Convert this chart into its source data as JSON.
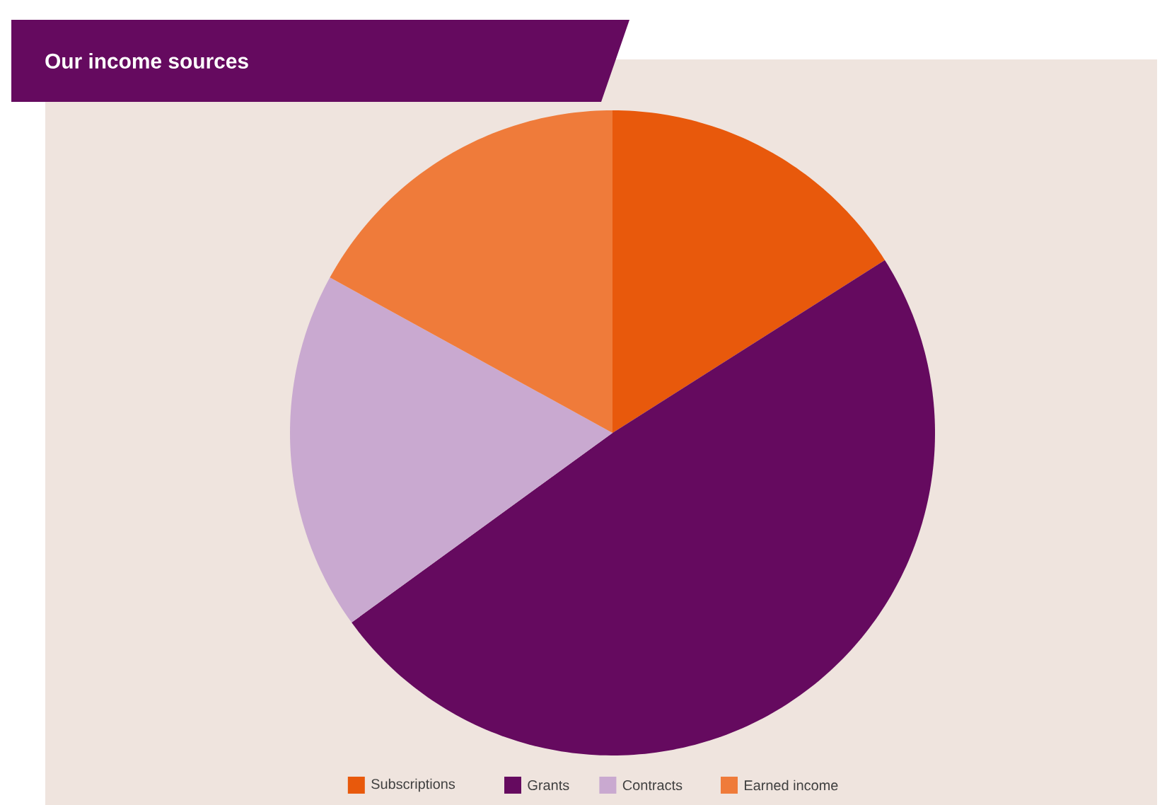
{
  "chart_data": {
    "type": "pie",
    "title": "Our income sources",
    "categories": [
      "Subscriptions",
      "Grants",
      "Contracts",
      "Earned income"
    ],
    "values": [
      16,
      49,
      18,
      17
    ],
    "colors": [
      "#e8590c",
      "#650a5f",
      "#c9a9d0",
      "#ef7b3a"
    ],
    "legend": "bottom"
  }
}
